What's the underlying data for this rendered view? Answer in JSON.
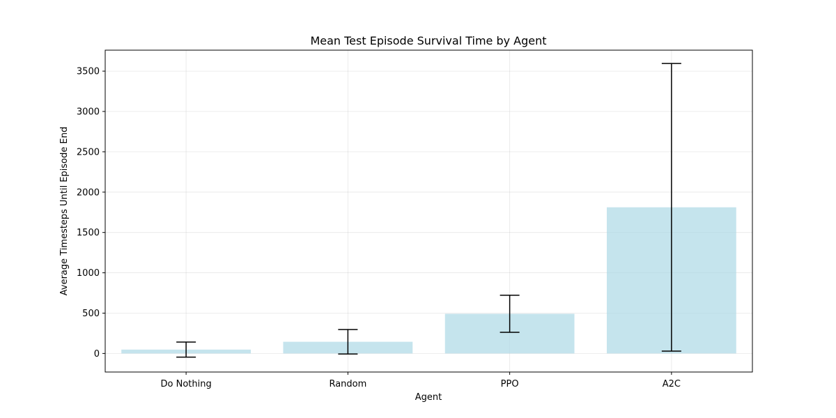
{
  "chart_data": {
    "type": "bar",
    "title": "Mean Test Episode Survival Time by Agent",
    "xlabel": "Agent",
    "ylabel": "Average Timesteps Until Episode End",
    "categories": [
      "Do Nothing",
      "Random",
      "PPO",
      "A2C"
    ],
    "values": [
      48,
      145,
      492,
      1812
    ],
    "error": [
      93,
      152,
      230,
      1783
    ],
    "ylim": [
      -230,
      3760
    ],
    "yticks": [
      0,
      500,
      1000,
      1500,
      2000,
      2500,
      3000,
      3500
    ],
    "grid": true,
    "bar_color": "#add8e6",
    "error_color": "#000000"
  }
}
